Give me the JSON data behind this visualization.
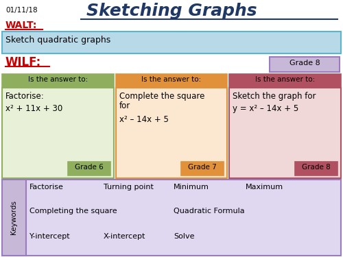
{
  "title": "Sketching Graphs",
  "date": "01/11/18",
  "walt_label": "WALT:",
  "walt_text": "Sketch quadratic graphs",
  "wilf_label": "WILF:",
  "grade8_box": "Grade 8",
  "col1_header": "Is the answer to:",
  "col2_header": "Is the answer to:",
  "col3_header": "Is the answer to:",
  "col1_body_line1": "Factorise:",
  "col1_body_line2": "x² + 11x + 30",
  "col1_grade": "Grade 6",
  "col2_body_line1": "Complete the square",
  "col2_body_line2": "for",
  "col2_body_line3": "x² – 14x + 5",
  "col3_body_line1": "Sketch the graph for",
  "col3_body_line2": "y = x² – 14x + 5",
  "col2_grade": "Grade 7",
  "col3_grade": "Grade 8",
  "kw_label": "Keywords",
  "kw_row1": [
    "Factorise",
    "Turning point",
    "Minimum",
    "Maximum"
  ],
  "kw_row2": [
    "Completing the square",
    "Quadratic Formula"
  ],
  "kw_row3": [
    "Y-intercept",
    "X-intercept",
    "Solve"
  ],
  "bg_color": "#ffffff",
  "title_color": "#1f3864",
  "walt_color": "#cc0000",
  "wilf_color": "#cc0000",
  "walt_bg": "#b8d9e8",
  "walt_border": "#5ab5d0",
  "grade8_wilf_bg": "#c8b8d8",
  "grade8_wilf_border": "#9b7bbf",
  "col1_header_bg": "#8faf5f",
  "col1_body_bg": "#e8f0d8",
  "col1_body_border": "#8faf5f",
  "col1_grade_bg": "#8faf5f",
  "col2_header_bg": "#e0913a",
  "col2_body_bg": "#fce8d0",
  "col2_body_border": "#e0913a",
  "col2_grade_bg": "#e0913a",
  "col3_header_bg": "#b05060",
  "col3_body_bg": "#f0d8d8",
  "col3_body_border": "#b05060",
  "col3_grade_bg": "#b05060",
  "kw_bg": "#e0d8f0",
  "kw_border": "#9b7bbf",
  "kw_label_bg": "#c8b8d8"
}
